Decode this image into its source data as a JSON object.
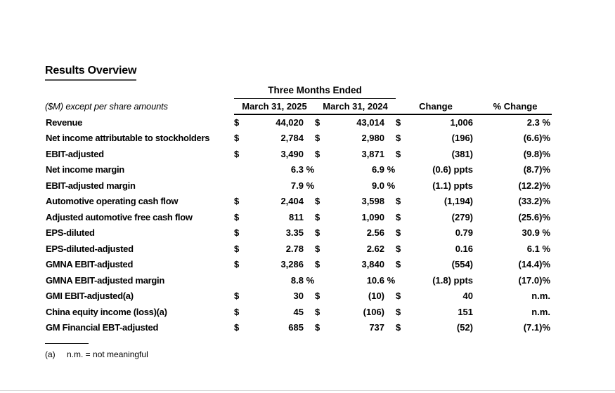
{
  "title": "Results Overview",
  "table": {
    "group_header": "Three Months Ended",
    "label_header": "($M) except per share amounts",
    "columns": {
      "col1": "March 31, 2025",
      "col2": "March 31, 2024",
      "change": "Change",
      "pct_change": "% Change"
    },
    "rows": [
      {
        "label": "Revenue",
        "d1": "$",
        "v1": "44,020",
        "s1": "",
        "d2": "$",
        "v2": "43,014",
        "s2": "",
        "d3": "$",
        "change": "1,006",
        "pct": "2.3 %"
      },
      {
        "label": "Net income attributable to stockholders",
        "d1": "$",
        "v1": "2,784",
        "s1": "",
        "d2": "$",
        "v2": "2,980",
        "s2": "",
        "d3": "$",
        "change": "(196)",
        "pct": "(6.6)%"
      },
      {
        "label": "EBIT-adjusted",
        "d1": "$",
        "v1": "3,490",
        "s1": "",
        "d2": "$",
        "v2": "3,871",
        "s2": "",
        "d3": "$",
        "change": "(381)",
        "pct": "(9.8)%"
      },
      {
        "label": "Net income margin",
        "d1": "",
        "v1": "6.3",
        "s1": " %",
        "d2": "",
        "v2": "6.9",
        "s2": " %",
        "d3": "",
        "change": "(0.6) ppts",
        "pct": "(8.7)%"
      },
      {
        "label": "EBIT-adjusted margin",
        "d1": "",
        "v1": "7.9",
        "s1": " %",
        "d2": "",
        "v2": "9.0",
        "s2": " %",
        "d3": "",
        "change": "(1.1) ppts",
        "pct": "(12.2)%"
      },
      {
        "label": "Automotive operating cash flow",
        "d1": "$",
        "v1": "2,404",
        "s1": "",
        "d2": "$",
        "v2": "3,598",
        "s2": "",
        "d3": "$",
        "change": "(1,194)",
        "pct": "(33.2)%"
      },
      {
        "label": "Adjusted automotive free cash flow",
        "d1": "$",
        "v1": "811",
        "s1": "",
        "d2": "$",
        "v2": "1,090",
        "s2": "",
        "d3": "$",
        "change": "(279)",
        "pct": "(25.6)%"
      },
      {
        "label": "EPS-diluted",
        "d1": "$",
        "v1": "3.35",
        "s1": "",
        "d2": "$",
        "v2": "2.56",
        "s2": "",
        "d3": "$",
        "change": "0.79",
        "pct": "30.9 %"
      },
      {
        "label": "EPS-diluted-adjusted",
        "d1": "$",
        "v1": "2.78",
        "s1": "",
        "d2": "$",
        "v2": "2.62",
        "s2": "",
        "d3": "$",
        "change": "0.16",
        "pct": "6.1 %"
      },
      {
        "label": "GMNA EBIT-adjusted",
        "d1": "$",
        "v1": "3,286",
        "s1": "",
        "d2": "$",
        "v2": "3,840",
        "s2": "",
        "d3": "$",
        "change": "(554)",
        "pct": "(14.4)%"
      },
      {
        "label": "GMNA EBIT-adjusted margin",
        "d1": "",
        "v1": "8.8",
        "s1": " %",
        "d2": "",
        "v2": "10.6",
        "s2": " %",
        "d3": "",
        "change": "(1.8) ppts",
        "pct": "(17.0)%"
      },
      {
        "label": "GMI EBIT-adjusted(a)",
        "d1": "$",
        "v1": "30",
        "s1": "",
        "d2": "$",
        "v2": "(10)",
        "s2": "",
        "d3": "$",
        "change": "40",
        "pct": "n.m."
      },
      {
        "label": "China equity income (loss)(a)",
        "d1": "$",
        "v1": "45",
        "s1": "",
        "d2": "$",
        "v2": "(106)",
        "s2": "",
        "d3": "$",
        "change": "151",
        "pct": "n.m."
      },
      {
        "label": "GM Financial EBT-adjusted",
        "d1": "$",
        "v1": "685",
        "s1": "",
        "d2": "$",
        "v2": "737",
        "s2": "",
        "d3": "$",
        "change": "(52)",
        "pct": "(7.1)%"
      }
    ]
  },
  "footnote": {
    "marker": "(a)",
    "text": "n.m. = not meaningful"
  },
  "colors": {
    "text": "#000000",
    "title_underline": "#4f4f4f",
    "rule": "#000000",
    "page_bottom_rule": "#d9d9d9",
    "background": "#ffffff"
  }
}
